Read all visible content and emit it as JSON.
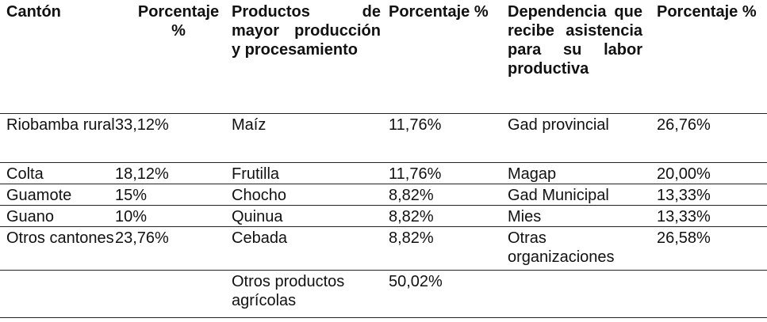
{
  "headers": [
    "Cantón",
    "Porcentaje %",
    "Productos de mayor producción y procesamiento",
    "Porcentaje %",
    "Dependencia que recibe asistencia para su labor productiva",
    "Porcentaje %"
  ],
  "rows": [
    [
      "Riobamba rural",
      "33,12%",
      "Maíz",
      "11,76%",
      "Gad provincial",
      "26,76%"
    ],
    [
      "Colta",
      "18,12%",
      "Frutilla",
      "11,76%",
      "Magap",
      "20,00%"
    ],
    [
      "Guamote",
      "15%",
      "Chocho",
      "8,82%",
      "Gad Municipal",
      "13,33%"
    ],
    [
      "Guano",
      "10%",
      "Quinua",
      "8,82%",
      "Mies",
      "13,33%"
    ],
    [
      "Otros cantones",
      "23,76%",
      "Cebada",
      "8,82%",
      "Otras organizaciones",
      "26,58%"
    ],
    [
      "",
      "",
      "Otros productos agrícolas",
      "50,02%",
      "",
      ""
    ]
  ]
}
